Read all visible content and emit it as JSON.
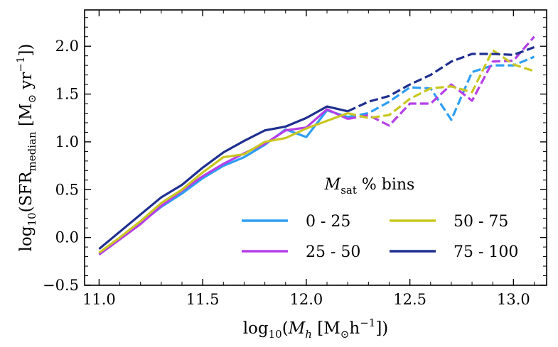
{
  "chart_data": {
    "type": "line",
    "xlabel": {
      "base": "log",
      "sub": "10",
      "open": "(",
      "var": "M",
      "var_sub": "h",
      "unit_pre": " [M",
      "odot_sub": "⊙",
      "unit_mid": "h",
      "unit_sup": "−1",
      "close": "])"
    },
    "ylabel": {
      "base": "log",
      "sub": "10",
      "open": "(SFR",
      "var_sub": "median",
      "unit_pre": " [M",
      "odot_sub": "⊙",
      "unit_mid": " yr",
      "unit_sup": "−1",
      "close": "])"
    },
    "xlim": [
      10.93,
      13.16
    ],
    "ylim": [
      -0.5,
      2.38
    ],
    "xticks": [
      11.0,
      11.5,
      12.0,
      12.5,
      13.0
    ],
    "xtick_labels": [
      "11.0",
      "11.5",
      "12.0",
      "12.5",
      "13.0"
    ],
    "yticks": [
      -0.5,
      0.0,
      0.5,
      1.0,
      1.5,
      2.0
    ],
    "ytick_labels": [
      "−0.5",
      "0.0",
      "0.5",
      "1.0",
      "1.5",
      "2.0"
    ],
    "legend": {
      "title_var": "M",
      "title_sub": "sat",
      "title_rest": " % bins",
      "position": "lower right",
      "ncol": 2
    },
    "series": [
      {
        "name": "0 - 25",
        "color": "#2e9ef4",
        "solid_x": [
          11.0,
          11.1,
          11.2,
          11.3,
          11.4,
          11.5,
          11.6,
          11.7,
          11.8,
          11.9,
          12.0,
          12.1,
          12.2
        ],
        "solid_y": [
          -0.17,
          -0.01,
          0.15,
          0.32,
          0.46,
          0.62,
          0.75,
          0.84,
          0.97,
          1.13,
          1.05,
          1.33,
          1.26
        ],
        "dashed_x": [
          12.2,
          12.3,
          12.4,
          12.5,
          12.6,
          12.7,
          12.8,
          12.9,
          13.0,
          13.1
        ],
        "dashed_y": [
          1.26,
          1.3,
          1.42,
          1.57,
          1.56,
          1.23,
          1.73,
          1.8,
          1.8,
          1.89
        ]
      },
      {
        "name": "25 - 50",
        "color": "#b53fe8",
        "solid_x": [
          11.0,
          11.1,
          11.2,
          11.3,
          11.4,
          11.5,
          11.6,
          11.7,
          11.8,
          11.9,
          12.0,
          12.1,
          12.2
        ],
        "solid_y": [
          -0.18,
          -0.02,
          0.14,
          0.33,
          0.49,
          0.64,
          0.77,
          0.88,
          0.98,
          1.12,
          1.15,
          1.34,
          1.24
        ],
        "dashed_x": [
          12.2,
          12.3,
          12.4,
          12.5,
          12.6,
          12.7,
          12.8,
          12.9,
          13.0,
          13.1
        ],
        "dashed_y": [
          1.24,
          1.28,
          1.17,
          1.4,
          1.4,
          1.6,
          1.43,
          1.84,
          1.85,
          2.1
        ]
      },
      {
        "name": "50 - 75",
        "color": "#c9c721",
        "solid_x": [
          11.0,
          11.1,
          11.2,
          11.3,
          11.4,
          11.5,
          11.6,
          11.7,
          11.8,
          11.9,
          12.0,
          12.1,
          12.2
        ],
        "solid_y": [
          -0.16,
          0.0,
          0.17,
          0.36,
          0.5,
          0.68,
          0.84,
          0.87,
          1.0,
          1.04,
          1.14,
          1.22,
          1.3
        ],
        "dashed_x": [
          12.2,
          12.3,
          12.4,
          12.5,
          12.6,
          12.7,
          12.8,
          12.9,
          13.0,
          13.1
        ],
        "dashed_y": [
          1.3,
          1.25,
          1.28,
          1.45,
          1.56,
          1.58,
          1.52,
          1.96,
          1.81,
          1.74
        ]
      },
      {
        "name": "75 - 100",
        "color": "#1f2f8f",
        "solid_x": [
          11.0,
          11.1,
          11.2,
          11.3,
          11.4,
          11.5,
          11.6,
          11.7,
          11.8,
          11.9,
          12.0,
          12.1,
          12.2
        ],
        "solid_y": [
          -0.12,
          0.06,
          0.24,
          0.42,
          0.55,
          0.73,
          0.89,
          1.01,
          1.12,
          1.16,
          1.25,
          1.37,
          1.32
        ],
        "dashed_x": [
          12.2,
          12.3,
          12.4,
          12.5,
          12.6,
          12.7,
          12.8,
          12.9,
          13.0,
          13.1
        ],
        "dashed_y": [
          1.32,
          1.42,
          1.48,
          1.6,
          1.7,
          1.84,
          1.92,
          1.92,
          1.91,
          1.99
        ]
      }
    ]
  }
}
